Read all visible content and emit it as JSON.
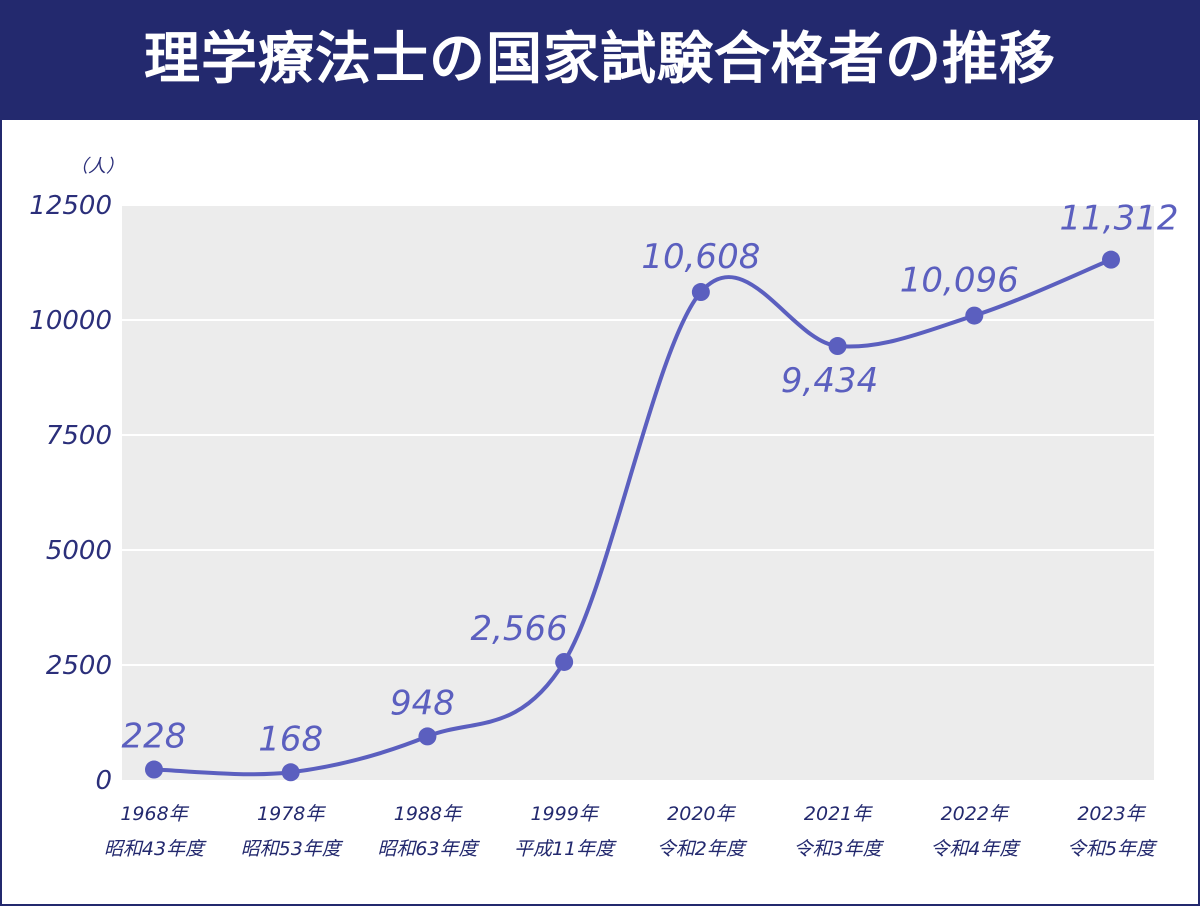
{
  "title": "理学療法士の国家試験合格者の推移",
  "colors": {
    "header": "#23296e",
    "series": "#5b5fbf",
    "plot_bg": "#ececec",
    "text": "#23296e"
  },
  "chart_data": {
    "type": "line",
    "title": "理学療法士の国家試験合格者の推移",
    "y_unit": "（人）",
    "ylim": [
      0,
      12500
    ],
    "yticks": [
      0,
      2500,
      5000,
      7500,
      10000,
      12500
    ],
    "grid": true,
    "categories": [
      [
        "1968年",
        "昭和43年度"
      ],
      [
        "1978年",
        "昭和53年度"
      ],
      [
        "1988年",
        "昭和63年度"
      ],
      [
        "1999年",
        "平成11年度"
      ],
      [
        "2020年",
        "令和2年度"
      ],
      [
        "2021年",
        "令和3年度"
      ],
      [
        "2022年",
        "令和4年度"
      ],
      [
        "2023年",
        "令和5年度"
      ]
    ],
    "values": [
      228,
      168,
      948,
      2566,
      10608,
      9434,
      10096,
      11312
    ],
    "value_labels": [
      "228",
      "168",
      "948",
      "2,566",
      "10,608",
      "9,434",
      "10,096",
      "11,312"
    ]
  }
}
